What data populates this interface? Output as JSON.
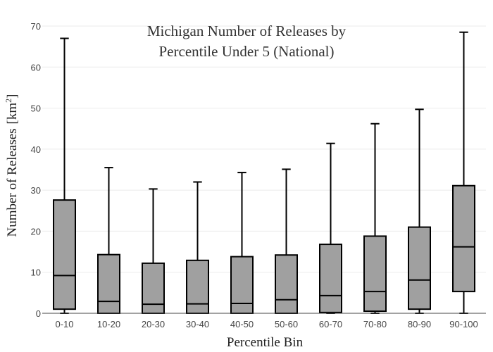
{
  "chart_data": {
    "type": "box",
    "title_line1": "Michigan Number of Releases by",
    "title_line2": "Percentile Under 5 (National)",
    "xlabel": "Percentile Bin",
    "ylabel": "Number of Releases",
    "ylabel_unit_base": "km",
    "ylabel_unit_exp": "2",
    "ylim": [
      0,
      70
    ],
    "yticks": [
      0,
      10,
      20,
      30,
      40,
      50,
      60,
      70
    ],
    "grid": true,
    "categories": [
      "0-10",
      "10-20",
      "20-30",
      "30-40",
      "40-50",
      "50-60",
      "60-70",
      "70-80",
      "80-90",
      "90-100"
    ],
    "boxes": [
      {
        "min": 0,
        "q1": 1,
        "median": 9.2,
        "q3": 27.6,
        "max": 67
      },
      {
        "min": 0,
        "q1": 0,
        "median": 2.9,
        "q3": 14.3,
        "max": 35.5
      },
      {
        "min": 0,
        "q1": 0,
        "median": 2.2,
        "q3": 12.2,
        "max": 30.3
      },
      {
        "min": 0,
        "q1": 0,
        "median": 2.3,
        "q3": 12.9,
        "max": 32
      },
      {
        "min": 0,
        "q1": 0,
        "median": 2.4,
        "q3": 13.8,
        "max": 34.3
      },
      {
        "min": 0,
        "q1": 0,
        "median": 3.3,
        "q3": 14.2,
        "max": 35.1
      },
      {
        "min": 0,
        "q1": 0.2,
        "median": 4.3,
        "q3": 16.8,
        "max": 41.4
      },
      {
        "min": 0,
        "q1": 0.5,
        "median": 5.3,
        "q3": 18.8,
        "max": 46.2
      },
      {
        "min": 0,
        "q1": 1,
        "median": 8.1,
        "q3": 21,
        "max": 49.7
      },
      {
        "min": 0,
        "q1": 5.3,
        "median": 16.2,
        "q3": 31.1,
        "max": 68.5
      }
    ],
    "colors": {
      "box_fill": "#a0a0a0",
      "box_stroke": "#000000",
      "grid": "#ebebeb"
    }
  }
}
